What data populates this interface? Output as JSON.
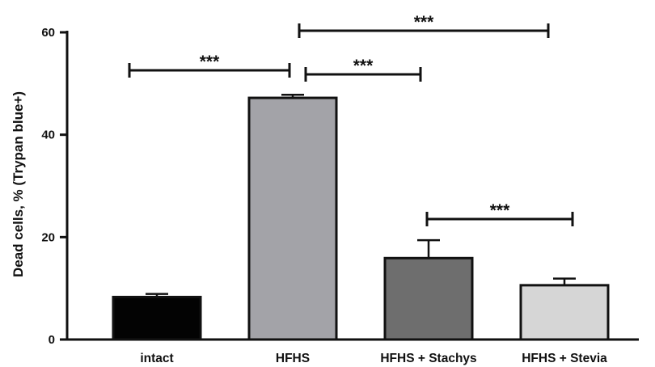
{
  "chart_data": {
    "type": "bar",
    "ylabel": "Dead cells, % (Trypan blue+)",
    "xlabel": "",
    "ylim": [
      0,
      60
    ],
    "yticks": [
      0,
      20,
      40,
      60
    ],
    "categories": [
      "intact",
      "HFHS",
      "HFHS + Stachys",
      "HFHS + Stevia"
    ],
    "values": [
      8.3,
      47.2,
      15.9,
      10.6
    ],
    "errors": [
      0.6,
      0.6,
      3.5,
      1.3
    ],
    "bar_colors": [
      "#030303",
      "#a3a3a8",
      "#6e6e6e",
      "#d6d6d6"
    ],
    "significance": [
      {
        "from": "intact",
        "to": "HFHS",
        "label": "***"
      },
      {
        "from": "HFHS",
        "to": "HFHS + Stachys",
        "label": "***"
      },
      {
        "from": "HFHS",
        "to": "HFHS + Stevia",
        "label": "***"
      },
      {
        "from": "HFHS + Stachys",
        "to": "HFHS + Stevia",
        "label": "***"
      }
    ]
  }
}
